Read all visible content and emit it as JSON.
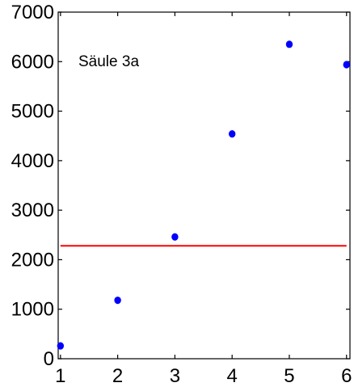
{
  "chart_data": {
    "type": "scatter",
    "title": "",
    "xlabel": "",
    "ylabel": "",
    "xlim": [
      0.96,
      6.06
    ],
    "ylim": [
      0,
      7000
    ],
    "x_ticks": [
      1,
      2,
      3,
      4,
      5,
      6
    ],
    "y_ticks": [
      0,
      1000,
      2000,
      3000,
      4000,
      5000,
      6000,
      7000
    ],
    "x_tick_labels": [
      "1",
      "2",
      "3",
      "4",
      "5",
      "6"
    ],
    "y_tick_labels": [
      "0",
      "1000",
      "2000",
      "3000",
      "4000",
      "5000",
      "6000",
      "7000"
    ],
    "grid": false,
    "legend": "none",
    "annotation": "Säule 3a",
    "series": [
      {
        "type": "scatter",
        "color": "#0000ff",
        "x": [
          1,
          2,
          3,
          4,
          5,
          6
        ],
        "y": [
          260,
          1180,
          2460,
          4540,
          6350,
          5940
        ]
      },
      {
        "type": "hline",
        "color": "#ff0000",
        "x": [
          1,
          6
        ],
        "y": [
          2280,
          2280
        ]
      }
    ]
  }
}
